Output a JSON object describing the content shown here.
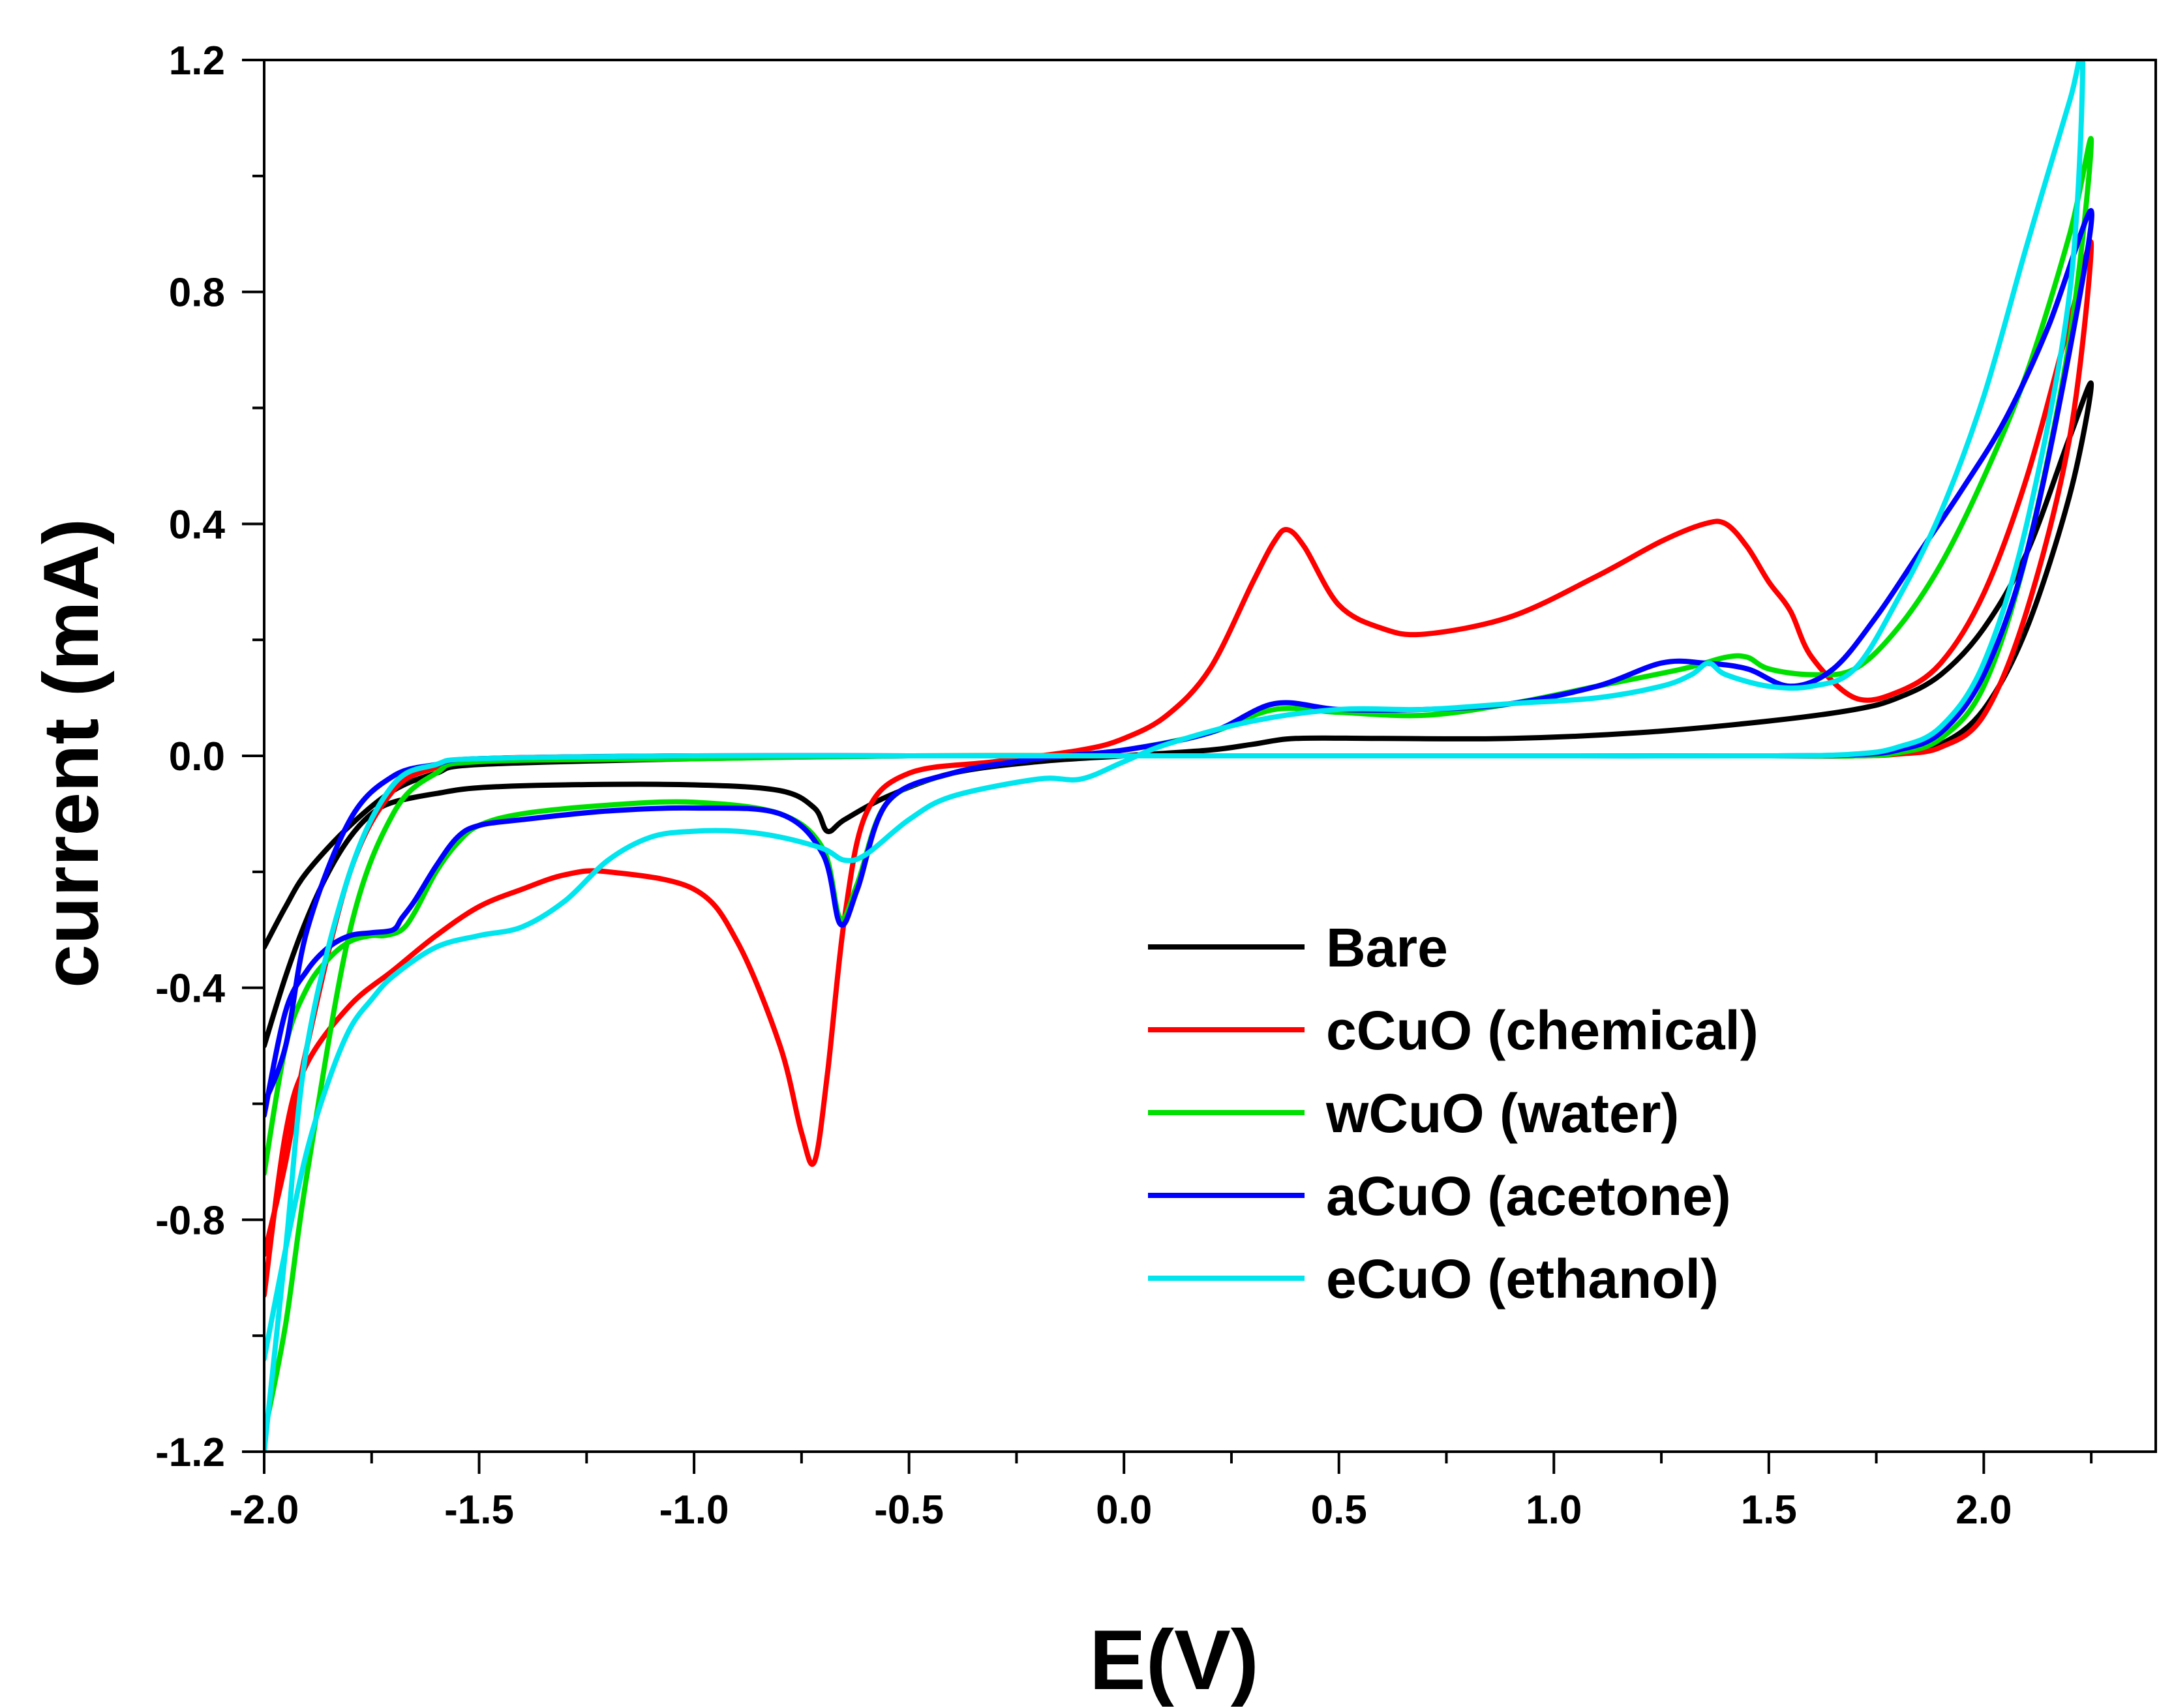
{
  "chart_data": {
    "type": "line",
    "xlabel": "E(V)",
    "ylabel": "current  (mA)",
    "xlim": [
      -2.0,
      2.4
    ],
    "ylim": [
      -1.2,
      1.2
    ],
    "x_ticks": [
      -2.0,
      -1.5,
      -1.0,
      -0.5,
      0.0,
      0.5,
      1.0,
      1.5,
      2.0
    ],
    "x_tick_labels": [
      "-2.0",
      "-1.5",
      "-1.0",
      "-0.5",
      "0.0",
      "0.5",
      "1.0",
      "1.5",
      "2.0"
    ],
    "y_ticks": [
      -1.2,
      -0.8,
      -0.4,
      0.0,
      0.4,
      0.8,
      1.2
    ],
    "y_tick_labels": [
      "-1.2",
      "-0.8",
      "-0.4",
      "0.0",
      "0.4",
      "0.8",
      "1.2"
    ],
    "grid": false,
    "legend_position": "bottom-right",
    "series": [
      {
        "name": "Bare",
        "color": "#000000",
        "x": [
          -2.0,
          -1.95,
          -1.9,
          -1.85,
          -1.8,
          -1.75,
          -1.7,
          -1.6,
          -1.5,
          -1.3,
          -1.0,
          -0.8,
          -0.72,
          -0.69,
          -0.65,
          -0.55,
          -0.4,
          -0.2,
          0.0,
          0.2,
          0.3,
          0.4,
          0.6,
          0.9,
          1.2,
          1.5,
          1.7,
          1.8,
          1.9,
          2.0,
          2.1,
          2.2,
          2.25,
          2.2,
          2.1,
          2.0,
          1.9,
          1.8,
          1.7,
          1.5,
          1.0,
          0.5,
          0.0,
          -0.5,
          -1.0,
          -1.5,
          -1.6,
          -1.7,
          -1.8,
          -1.9,
          -1.95,
          -2.0
        ],
        "y": [
          -0.5,
          -0.38,
          -0.28,
          -0.2,
          -0.14,
          -0.1,
          -0.08,
          -0.065,
          -0.055,
          -0.05,
          -0.05,
          -0.06,
          -0.09,
          -0.13,
          -0.11,
          -0.07,
          -0.03,
          -0.01,
          0.0,
          0.01,
          0.02,
          0.03,
          0.03,
          0.03,
          0.04,
          0.06,
          0.08,
          0.1,
          0.14,
          0.22,
          0.35,
          0.55,
          0.64,
          0.45,
          0.22,
          0.08,
          0.02,
          0.005,
          0.0,
          0.0,
          0.0,
          0.0,
          0.0,
          0.0,
          -0.005,
          -0.015,
          -0.03,
          -0.06,
          -0.12,
          -0.2,
          -0.26,
          -0.33
        ]
      },
      {
        "name": "cCuO (chemical)",
        "color": "#ff0000",
        "x": [
          -2.0,
          -1.95,
          -1.9,
          -1.8,
          -1.7,
          -1.6,
          -1.5,
          -1.4,
          -1.3,
          -1.2,
          -1.0,
          -0.9,
          -0.8,
          -0.75,
          -0.72,
          -0.69,
          -0.65,
          -0.6,
          -0.5,
          -0.3,
          -0.1,
          0.0,
          0.1,
          0.2,
          0.3,
          0.35,
          0.38,
          0.42,
          0.5,
          0.6,
          0.7,
          0.9,
          1.1,
          1.25,
          1.35,
          1.4,
          1.45,
          1.5,
          1.55,
          1.6,
          1.7,
          1.8,
          1.9,
          2.0,
          2.1,
          2.2,
          2.25,
          2.2,
          2.1,
          2.0,
          1.9,
          1.8,
          1.7,
          1.5,
          1.0,
          0.5,
          0.0,
          -0.5,
          -1.0,
          -1.5,
          -1.6,
          -1.7,
          -1.8,
          -1.9,
          -1.95,
          -2.0
        ],
        "y": [
          -0.93,
          -0.65,
          -0.53,
          -0.43,
          -0.37,
          -0.31,
          -0.26,
          -0.23,
          -0.205,
          -0.2,
          -0.23,
          -0.32,
          -0.5,
          -0.65,
          -0.7,
          -0.55,
          -0.28,
          -0.1,
          -0.03,
          -0.01,
          0.01,
          0.03,
          0.07,
          0.15,
          0.3,
          0.37,
          0.39,
          0.36,
          0.26,
          0.22,
          0.21,
          0.24,
          0.31,
          0.37,
          0.4,
          0.4,
          0.36,
          0.3,
          0.25,
          0.17,
          0.1,
          0.11,
          0.16,
          0.28,
          0.48,
          0.75,
          0.88,
          0.55,
          0.25,
          0.07,
          0.015,
          0.003,
          0.0,
          0.0,
          0.0,
          0.0,
          0.0,
          0.0,
          0.0,
          -0.005,
          -0.02,
          -0.06,
          -0.2,
          -0.5,
          -0.7,
          -0.86
        ]
      },
      {
        "name": "wCuO (water)",
        "color": "#00e000",
        "x": [
          -2.0,
          -1.95,
          -1.9,
          -1.85,
          -1.8,
          -1.75,
          -1.72,
          -1.68,
          -1.65,
          -1.6,
          -1.55,
          -1.5,
          -1.4,
          -1.2,
          -1.0,
          -0.8,
          -0.7,
          -0.66,
          -0.62,
          -0.55,
          -0.4,
          -0.2,
          0.0,
          0.2,
          0.35,
          0.5,
          0.7,
          0.9,
          1.1,
          1.3,
          1.4,
          1.45,
          1.5,
          1.6,
          1.7,
          1.8,
          1.9,
          2.0,
          2.1,
          2.2,
          2.25,
          2.2,
          2.1,
          2.0,
          1.9,
          1.8,
          1.7,
          1.5,
          1.0,
          0.5,
          0.0,
          -0.5,
          -1.0,
          -1.5,
          -1.6,
          -1.7,
          -1.8,
          -1.9,
          -1.95,
          -2.0
        ],
        "y": [
          -0.72,
          -0.5,
          -0.4,
          -0.35,
          -0.32,
          -0.31,
          -0.31,
          -0.3,
          -0.27,
          -0.2,
          -0.15,
          -0.12,
          -0.1,
          -0.085,
          -0.08,
          -0.1,
          -0.16,
          -0.28,
          -0.22,
          -0.08,
          -0.03,
          -0.005,
          0.01,
          0.04,
          0.08,
          0.075,
          0.07,
          0.09,
          0.12,
          0.15,
          0.17,
          0.17,
          0.15,
          0.14,
          0.15,
          0.22,
          0.33,
          0.48,
          0.66,
          0.9,
          1.06,
          0.72,
          0.35,
          0.12,
          0.03,
          0.005,
          0.0,
          0.0,
          0.0,
          0.0,
          0.0,
          0.0,
          -0.005,
          -0.01,
          -0.03,
          -0.1,
          -0.3,
          -0.72,
          -0.98,
          -1.17
        ]
      },
      {
        "name": "aCuO (acetone)",
        "color": "#0000ff",
        "x": [
          -2.0,
          -1.95,
          -1.9,
          -1.85,
          -1.8,
          -1.75,
          -1.7,
          -1.68,
          -1.65,
          -1.6,
          -1.55,
          -1.5,
          -1.4,
          -1.2,
          -1.0,
          -0.8,
          -0.7,
          -0.66,
          -0.62,
          -0.55,
          -0.4,
          -0.2,
          0.0,
          0.2,
          0.35,
          0.5,
          0.7,
          0.9,
          1.1,
          1.25,
          1.35,
          1.45,
          1.55,
          1.65,
          1.75,
          1.85,
          1.95,
          2.05,
          2.15,
          2.25,
          2.2,
          2.1,
          2.0,
          1.9,
          1.8,
          1.7,
          1.5,
          1.0,
          0.5,
          0.0,
          -0.5,
          -1.0,
          -1.5,
          -1.6,
          -1.7,
          -1.8,
          -1.9,
          -1.95,
          -2.0
        ],
        "y": [
          -0.62,
          -0.44,
          -0.37,
          -0.33,
          -0.31,
          -0.305,
          -0.3,
          -0.28,
          -0.25,
          -0.19,
          -0.14,
          -0.12,
          -0.11,
          -0.095,
          -0.09,
          -0.1,
          -0.17,
          -0.29,
          -0.23,
          -0.08,
          -0.03,
          -0.005,
          0.01,
          0.04,
          0.09,
          0.08,
          0.08,
          0.09,
          0.12,
          0.16,
          0.16,
          0.15,
          0.12,
          0.15,
          0.24,
          0.35,
          0.46,
          0.58,
          0.74,
          0.94,
          0.7,
          0.35,
          0.14,
          0.04,
          0.01,
          0.002,
          0.0,
          0.0,
          0.0,
          0.0,
          0.0,
          0.0,
          -0.005,
          -0.015,
          -0.035,
          -0.11,
          -0.3,
          -0.5,
          -0.6
        ]
      },
      {
        "name": "eCuO (ethanol)",
        "color": "#00e5ee",
        "x": [
          -2.0,
          -1.95,
          -1.9,
          -1.85,
          -1.8,
          -1.75,
          -1.7,
          -1.6,
          -1.5,
          -1.4,
          -1.3,
          -1.2,
          -1.1,
          -1.0,
          -0.9,
          -0.8,
          -0.7,
          -0.65,
          -0.6,
          -0.5,
          -0.4,
          -0.2,
          -0.1,
          0.0,
          0.1,
          0.3,
          0.5,
          0.7,
          0.9,
          1.1,
          1.25,
          1.32,
          1.36,
          1.4,
          1.5,
          1.6,
          1.7,
          1.8,
          1.9,
          2.0,
          2.1,
          2.2,
          2.23,
          2.2,
          2.1,
          2.0,
          1.9,
          1.8,
          1.7,
          1.5,
          1.0,
          0.5,
          0.0,
          -0.5,
          -1.0,
          -1.5,
          -1.6,
          -1.7,
          -1.8,
          -1.9,
          -1.95,
          -2.0
        ],
        "y": [
          -1.04,
          -0.85,
          -0.68,
          -0.56,
          -0.47,
          -0.42,
          -0.38,
          -0.33,
          -0.31,
          -0.295,
          -0.25,
          -0.18,
          -0.14,
          -0.13,
          -0.13,
          -0.14,
          -0.16,
          -0.18,
          -0.17,
          -0.11,
          -0.07,
          -0.04,
          -0.04,
          -0.01,
          0.02,
          0.06,
          0.08,
          0.08,
          0.09,
          0.1,
          0.12,
          0.14,
          0.16,
          0.14,
          0.12,
          0.12,
          0.15,
          0.27,
          0.42,
          0.62,
          0.88,
          1.13,
          1.2,
          0.8,
          0.4,
          0.16,
          0.05,
          0.015,
          0.003,
          0.0,
          0.0,
          0.0,
          0.0,
          0.0,
          0.0,
          -0.005,
          -0.015,
          -0.05,
          -0.2,
          -0.5,
          -0.85,
          -1.2
        ]
      }
    ]
  }
}
